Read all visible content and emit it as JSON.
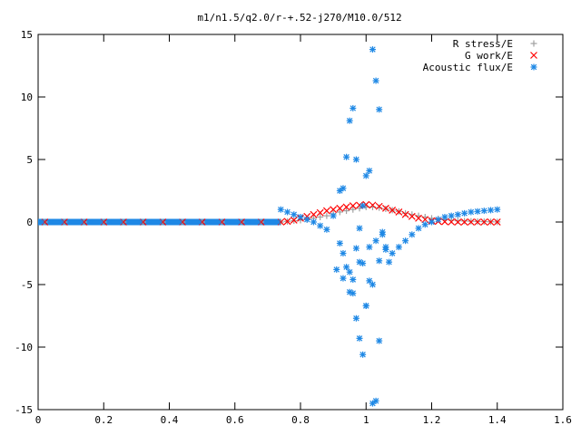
{
  "chart_data": {
    "type": "scatter",
    "title": "m1/n1.5/q2.0/r-+.52-j270/M10.0/512",
    "xlabel": "",
    "ylabel": "",
    "xlim": [
      0,
      1.6
    ],
    "ylim": [
      -15,
      15
    ],
    "xticks": [
      0,
      0.2,
      0.4,
      0.6,
      0.8,
      1,
      1.2,
      1.4,
      1.6
    ],
    "xtick_labels": [
      "0",
      "0.2",
      "0.4",
      "0.6",
      "0.8",
      "1",
      "1.2",
      "1.4",
      "1.6"
    ],
    "yticks": [
      -15,
      -10,
      -5,
      0,
      5,
      10,
      15
    ],
    "ytick_labels": [
      "-15",
      "-10",
      "-5",
      "0",
      "5",
      "10",
      "15"
    ],
    "grid": false,
    "legend": "top-right",
    "series": [
      {
        "name": "R stress/E",
        "marker": "+",
        "color": "#a0a0a0",
        "x": [
          0.02,
          0.08,
          0.14,
          0.2,
          0.26,
          0.32,
          0.38,
          0.44,
          0.5,
          0.56,
          0.62,
          0.68,
          0.74,
          0.76,
          0.78,
          0.8,
          0.82,
          0.84,
          0.86,
          0.88,
          0.9,
          0.92,
          0.94,
          0.96,
          0.98,
          1.0,
          1.02,
          1.04,
          1.06,
          1.08,
          1.1,
          1.12,
          1.14,
          1.16,
          1.18,
          1.2,
          1.22,
          1.24,
          1.26,
          1.28,
          1.3,
          1.32,
          1.34,
          1.36,
          1.38,
          1.4
        ],
        "y": [
          0,
          0,
          0,
          0,
          0,
          0,
          0,
          0,
          0,
          0,
          0,
          0,
          0,
          0.05,
          0.1,
          0.15,
          0.2,
          0.3,
          0.4,
          0.5,
          0.65,
          0.8,
          0.9,
          1.0,
          1.1,
          1.2,
          1.2,
          1.15,
          1.05,
          0.95,
          0.85,
          0.7,
          0.6,
          0.5,
          0.4,
          0.3,
          0.25,
          0.2,
          0.15,
          0.1,
          0.08,
          0.06,
          0.04,
          0.03,
          0.02,
          0.01
        ]
      },
      {
        "name": "G work/E",
        "marker": "x",
        "color": "#ff0000",
        "x": [
          0.02,
          0.08,
          0.14,
          0.2,
          0.26,
          0.32,
          0.38,
          0.44,
          0.5,
          0.56,
          0.62,
          0.68,
          0.74,
          0.76,
          0.78,
          0.8,
          0.82,
          0.84,
          0.86,
          0.88,
          0.9,
          0.92,
          0.94,
          0.96,
          0.98,
          1.0,
          1.02,
          1.04,
          1.06,
          1.08,
          1.1,
          1.12,
          1.14,
          1.16,
          1.18,
          1.2,
          1.22,
          1.24,
          1.26,
          1.28,
          1.3,
          1.32,
          1.34,
          1.36,
          1.38,
          1.4
        ],
        "y": [
          0,
          0,
          0,
          0,
          0,
          0,
          0,
          0,
          0,
          0,
          0,
          0,
          0,
          0.05,
          0.15,
          0.3,
          0.45,
          0.6,
          0.75,
          0.9,
          1.0,
          1.1,
          1.2,
          1.3,
          1.35,
          1.4,
          1.35,
          1.25,
          1.1,
          0.95,
          0.8,
          0.6,
          0.45,
          0.3,
          0.2,
          0.1,
          0.05,
          0.02,
          0.01,
          0,
          0,
          0,
          0,
          0,
          0,
          0
        ]
      },
      {
        "name": "Acoustic flux/E",
        "marker": "*",
        "color": "#1e88e5",
        "x": [
          0.01,
          0.04,
          0.07,
          0.1,
          0.13,
          0.16,
          0.19,
          0.22,
          0.25,
          0.28,
          0.31,
          0.34,
          0.37,
          0.4,
          0.43,
          0.46,
          0.49,
          0.52,
          0.55,
          0.58,
          0.61,
          0.64,
          0.67,
          0.7,
          0.73,
          0.74,
          0.76,
          0.78,
          0.8,
          0.82,
          0.84,
          0.86,
          0.88,
          0.9,
          0.92,
          0.93,
          0.94,
          0.95,
          0.96,
          0.97,
          0.98,
          0.99,
          1.0,
          1.01,
          1.02,
          1.03,
          1.04,
          1.05,
          1.06,
          1.08,
          1.1,
          1.12,
          1.14,
          1.16,
          1.18,
          1.2,
          1.22,
          1.24,
          1.26,
          1.28,
          1.3,
          1.32,
          1.34,
          1.36,
          1.38,
          1.4,
          0.93,
          0.95,
          0.96,
          0.97,
          0.98,
          0.99,
          1.0,
          1.01,
          1.02,
          1.03,
          1.04,
          0.92,
          0.94,
          0.96,
          0.98,
          1.0,
          1.02,
          1.04,
          1.06,
          0.91,
          0.93,
          0.95,
          0.97,
          0.99,
          1.01,
          1.03,
          1.05,
          1.07
        ],
        "y": [
          0,
          0,
          0,
          0,
          0,
          0,
          0,
          0,
          0,
          0,
          0,
          0,
          0,
          0,
          0,
          0,
          0,
          0,
          0,
          0,
          0,
          0,
          0,
          0,
          0,
          1.0,
          0.8,
          0.6,
          0.4,
          0.2,
          0.0,
          -0.3,
          -0.6,
          0.5,
          2.5,
          2.7,
          5.2,
          8.1,
          9.1,
          5.0,
          -0.5,
          1.3,
          3.7,
          4.1,
          13.8,
          11.3,
          9.0,
          -1.0,
          -2.0,
          -2.5,
          -2.0,
          -1.5,
          -1.0,
          -0.5,
          -0.2,
          0.0,
          0.2,
          0.4,
          0.5,
          0.6,
          0.7,
          0.8,
          0.85,
          0.9,
          0.95,
          1.0,
          -2.5,
          -4.0,
          -5.7,
          -7.7,
          -9.3,
          -10.6,
          -6.7,
          -4.7,
          -14.5,
          -14.3,
          -9.5,
          -1.7,
          -3.6,
          -4.6,
          -3.2,
          -6.7,
          -5.0,
          -3.1,
          -2.2,
          -3.8,
          -4.5,
          -5.6,
          -2.1,
          -3.3,
          -2.0,
          -1.5,
          -0.8,
          -3.2
        ]
      }
    ]
  }
}
